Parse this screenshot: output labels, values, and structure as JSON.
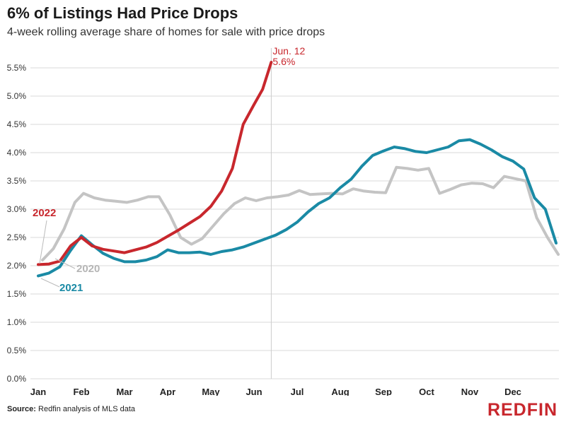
{
  "header": {
    "title": "6% of Listings Had Price Drops",
    "subtitle": "4-week rolling average share of homes for sale with price drops"
  },
  "footer": {
    "source_label": "Source:",
    "source_text": "Redfin analysis of MLS data",
    "logo_text": "REDFIN"
  },
  "colors": {
    "series_2022": "#c8272d",
    "series_2021": "#1a8aa5",
    "series_2020": "#c4c4c4",
    "grid": "#d9d9d9",
    "annotation_line": "#cccccc"
  },
  "chart_data": {
    "type": "line",
    "title": "6% of Listings Had Price Drops",
    "subtitle": "4-week rolling average share of homes for sale with price drops",
    "xlabel": "",
    "ylabel": "",
    "ylim": [
      0,
      5.6
    ],
    "y_ticks": [
      "0.0%",
      "0.5%",
      "1.0%",
      "1.5%",
      "2.0%",
      "2.5%",
      "3.0%",
      "3.5%",
      "4.0%",
      "4.5%",
      "5.0%",
      "5.5%"
    ],
    "x_ticks": [
      "Jan",
      "Feb",
      "Mar",
      "Apr",
      "May",
      "Jun",
      "Jul",
      "Aug",
      "Sep",
      "Oct",
      "Nov",
      "Dec"
    ],
    "xlim": [
      1,
      13.2
    ],
    "grid": true,
    "annotation": {
      "date_label": "Jun. 12",
      "value_label": "5.6%",
      "x": 6.4,
      "y": 5.6
    },
    "series": [
      {
        "name": "2022",
        "x": [
          1.0,
          1.25,
          1.5,
          1.75,
          2.0,
          2.25,
          2.5,
          2.75,
          3.0,
          3.25,
          3.5,
          3.75,
          4.0,
          4.25,
          4.5,
          4.75,
          5.0,
          5.25,
          5.5,
          5.75,
          6.0,
          6.2,
          6.4
        ],
        "values": [
          2.02,
          2.03,
          2.08,
          2.35,
          2.5,
          2.35,
          2.29,
          2.26,
          2.23,
          2.28,
          2.33,
          2.41,
          2.52,
          2.63,
          2.75,
          2.87,
          3.05,
          3.32,
          3.72,
          4.5,
          4.85,
          5.12,
          5.6
        ]
      },
      {
        "name": "2021",
        "x": [
          1.0,
          1.25,
          1.5,
          1.75,
          2.0,
          2.25,
          2.5,
          2.75,
          3.0,
          3.25,
          3.5,
          3.75,
          4.0,
          4.25,
          4.5,
          4.75,
          5.0,
          5.25,
          5.5,
          5.75,
          6.0,
          6.25,
          6.5,
          6.75,
          7.0,
          7.25,
          7.5,
          7.75,
          8.0,
          8.25,
          8.5,
          8.75,
          9.0,
          9.25,
          9.5,
          9.75,
          10.0,
          10.25,
          10.5,
          10.75,
          11.0,
          11.25,
          11.5,
          11.75,
          12.0,
          12.25,
          12.5,
          12.75,
          13.0
        ],
        "values": [
          1.82,
          1.87,
          1.98,
          2.27,
          2.53,
          2.37,
          2.22,
          2.13,
          2.07,
          2.07,
          2.1,
          2.16,
          2.28,
          2.23,
          2.23,
          2.24,
          2.2,
          2.25,
          2.28,
          2.33,
          2.4,
          2.47,
          2.54,
          2.64,
          2.77,
          2.95,
          3.1,
          3.2,
          3.38,
          3.53,
          3.76,
          3.95,
          4.03,
          4.1,
          4.07,
          4.02,
          4.0,
          4.05,
          4.1,
          4.21,
          4.23,
          4.15,
          4.05,
          3.93,
          3.85,
          3.71,
          3.2,
          3.0,
          2.4
        ]
      },
      {
        "name": "2020",
        "x": [
          1.1,
          1.35,
          1.6,
          1.85,
          2.05,
          2.3,
          2.55,
          2.8,
          3.05,
          3.3,
          3.55,
          3.8,
          4.05,
          4.3,
          4.55,
          4.8,
          5.05,
          5.3,
          5.55,
          5.8,
          6.05,
          6.3,
          6.55,
          6.8,
          7.05,
          7.3,
          7.55,
          7.8,
          8.05,
          8.3,
          8.55,
          8.8,
          9.05,
          9.3,
          9.55,
          9.8,
          10.05,
          10.3,
          10.55,
          10.8,
          11.05,
          11.3,
          11.55,
          11.8,
          12.05,
          12.3,
          12.55,
          12.8,
          13.05
        ],
        "values": [
          2.1,
          2.3,
          2.65,
          3.12,
          3.28,
          3.2,
          3.16,
          3.14,
          3.12,
          3.16,
          3.22,
          3.22,
          2.9,
          2.5,
          2.38,
          2.48,
          2.7,
          2.92,
          3.1,
          3.2,
          3.15,
          3.2,
          3.22,
          3.25,
          3.33,
          3.26,
          3.27,
          3.28,
          3.27,
          3.36,
          3.32,
          3.3,
          3.29,
          3.74,
          3.72,
          3.69,
          3.72,
          3.28,
          3.35,
          3.43,
          3.46,
          3.45,
          3.38,
          3.58,
          3.54,
          3.5,
          2.85,
          2.5,
          2.2
        ]
      }
    ],
    "series_labels": [
      "2022",
      "2021",
      "2020"
    ]
  }
}
